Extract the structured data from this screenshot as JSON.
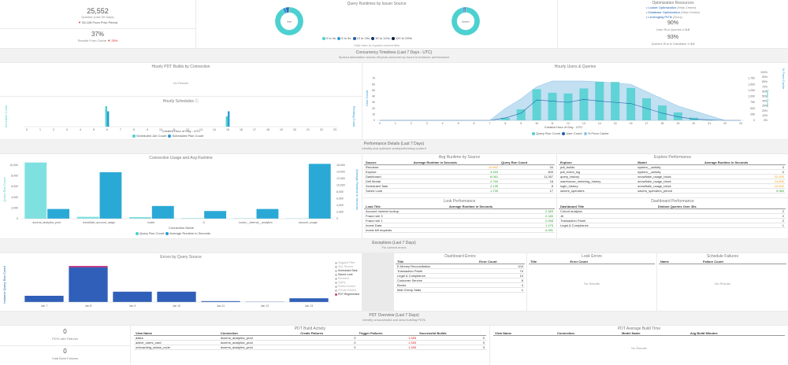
{
  "kpi": {
    "queries_value": "25,552",
    "queries_label": "Queries (Last 30 Days)",
    "prior_value": "53,108",
    "prior_label": "From Prior Period",
    "cache_value": "37%",
    "cache_label": "Results From Cache",
    "cache_delta": "25%"
  },
  "runtimes": {
    "title": "Query Runtimes by Issuer Source",
    "donut1_label": "User",
    "donut2_label": "System",
    "legend": [
      "0 to 4s",
      "5 to 9s",
      "10 to 29s",
      "30 to 119s",
      "120 to 299s"
    ],
    "hint": "Click here to expand current tiles"
  },
  "resources": {
    "title": "Optimization Resources",
    "items": [
      {
        "name": "Looker Optimization",
        "note": "(Help Center)"
      },
      {
        "name": "Database Optimization",
        "note": "(Help Center)"
      },
      {
        "name": "Leveraging PDTs",
        "note": "(Docs)"
      }
    ],
    "user_pct": "90%",
    "user_label": "User Run Queries",
    "user_threshold": "< 5.0",
    "db_pct": "93%",
    "db_label": "Queries Run in Database",
    "db_threshold": "< 4.0"
  },
  "concurrency": {
    "title": "Concurrency Timelines (Last 7 Days - UTC)",
    "subtitle": "Spread automation across off peak concurrency hours to enhance performance"
  },
  "pdt_builds": {
    "title": "Hourly PDT Builds by Connection",
    "no_results": "No Results"
  },
  "schedules": {
    "title": "Hourly Schedules",
    "xlabel": "Created Hour of Day - UTC",
    "left_axis": "Schedule Count",
    "right_axis": "Pending Count",
    "legend": [
      "Scheduled Job Count",
      "Scheduled Plan Count"
    ]
  },
  "hourly_users": {
    "title": "Hourly Users & Queries",
    "xlabel": "Created Hour of Day - UTC",
    "left_axis": "User Count",
    "right_axis": "Query Count",
    "right2_axis": "% From Cache",
    "legend": [
      "Query Run Count",
      "User Count",
      "% From Cache"
    ]
  },
  "perf": {
    "title": "Performance Details (Last 7 Days)",
    "subtitle": "Identify and optimize underperforming content"
  },
  "conn_usage": {
    "title": "Connection Usage and Avg Runtime",
    "xlabel": "Connection Name",
    "left_axis": "Query Run Count",
    "right_axis": "Average Runtime in Seconds",
    "legend": [
      "Query Run Count",
      "Average Runtime in Seconds"
    ]
  },
  "avg_source": {
    "title": "Avg Runtime by Source",
    "cols": [
      "Source",
      "Average Runtime in Seconds",
      "Query Run Count"
    ],
    "rows": [
      [
        "Renderer",
        "10.892",
        "34"
      ],
      [
        "Explore",
        "3.453",
        "409"
      ],
      [
        "Dashboard",
        "8.061",
        "11,267"
      ],
      [
        "Drill Modal",
        "2.769",
        "18"
      ],
      [
        "Scheduled Task",
        "2.135",
        "8"
      ],
      [
        "Saved Look",
        "1.705",
        "17"
      ]
    ]
  },
  "look_perf": {
    "title": "Look Performance",
    "cols": [
      "Look Title",
      "Average Runtime in Seconds"
    ],
    "rows": [
      [
        "Account number lookup",
        "2.369"
      ],
      [
        "Fraud rule 3",
        "2.180"
      ],
      [
        "Fraud rule 1",
        "2.058"
      ],
      [
        "Invest Data",
        "1.475"
      ],
      [
        "Invest bill requests",
        "0.091"
      ]
    ]
  },
  "explore_perf": {
    "title": "Explore Performance",
    "cols": [
      "Explore",
      "Model",
      "Average Runtime in Seconds"
    ],
    "rows": [
      [
        "pdt_builds",
        "system__activity",
        "0"
      ],
      [
        "pdt_event_log",
        "system__activity",
        "0"
      ],
      [
        "query_history",
        "snowflake_usage_block",
        "22,200"
      ],
      [
        "warehouse_metering_history",
        "snowflake_usage_block",
        "14,830"
      ],
      [
        "login_history",
        "snowflake_usage_block",
        "10,202"
      ],
      [
        "savers_spenders",
        "savers_spenders_period",
        "9,960"
      ]
    ]
  },
  "dash_perf": {
    "title": "Dashboard Performance",
    "cols": [
      "Dashboard Title",
      "Distinct Queries Over 30s"
    ],
    "rows": [
      [
        "Cohort analysis",
        "2"
      ],
      [
        "Jb",
        "2"
      ],
      [
        "Transaction Panel",
        "2"
      ],
      [
        "Legal & Compliance",
        "1"
      ]
    ]
  },
  "exceptions": {
    "title": "Exceptions (Last 7 Days)",
    "subtitle": "Fix content errors"
  },
  "errors": {
    "title": "Errors by Query Source",
    "left_axis": "Instance Query Run Count",
    "legend": [
      "Suggest Filter",
      "SQL Runner",
      "Scheduled Task",
      "Saved Look",
      "Renderer",
      "Query",
      "Public Embed",
      "Private Embed",
      "PDT Regenerator"
    ]
  },
  "dash_errors": {
    "title": "Dashboard Errors",
    "cols": [
      "Title",
      "Error Count"
    ],
    "rows": [
      [
        "E-Money Reconciliation",
        "104"
      ],
      [
        "Transaction Panel",
        "74"
      ],
      [
        "Legal & Compliance",
        "10"
      ],
      [
        "Customer Service",
        "6"
      ],
      [
        "Bonds",
        "4"
      ],
      [
        "Mail Chimp Stats",
        "1"
      ]
    ]
  },
  "look_errors": {
    "title": "Look Errors",
    "cols": [
      "Title",
      "Error Count"
    ],
    "no_results": "No Results"
  },
  "sched_failures": {
    "title": "Schedule Failures",
    "cols": [
      "Name",
      "Failure Count"
    ],
    "no_results": "No Results"
  },
  "pdt_overview": {
    "title": "PDT Overview (Last 7 Days)",
    "subtitle": "Identify unsuccessful and slow building PDTs"
  },
  "pdt_kpi": {
    "fail_value": "0",
    "fail_label": "PDTs with Failures",
    "total_value": "0",
    "total_label": "Total Build Failures"
  },
  "pdt_activity": {
    "title": "PDT Build Activity",
    "cols": [
      "View Name",
      "Connection",
      "Create Failures",
      "Trigger Failures",
      "Successful Builds"
    ],
    "rows": [
      [
        "dates",
        "dozens_analytics_prod",
        "0",
        "1,555",
        "0"
      ],
      [
        "active_users_card",
        "dozens_analytics_prod",
        "0",
        "1,555",
        "0"
      ],
      [
        "onboarding_status_code",
        "dozens_analytics_prod",
        "0",
        "1,555",
        "0"
      ]
    ]
  },
  "pdt_build_time": {
    "title": "PDT Average Build Time",
    "cols": [
      "View Name",
      "Connection",
      "Model Name",
      "Avg Build Minutes"
    ],
    "no_results": "No Results"
  },
  "chart_data": [
    {
      "type": "bar",
      "title": "Hourly Schedules",
      "xlabel": "Created Hour of Day - UTC",
      "categories": [
        "0",
        "1",
        "2",
        "3",
        "4",
        "5",
        "6",
        "7",
        "8",
        "9",
        "10",
        "11",
        "12",
        "13",
        "14",
        "15",
        "16",
        "17",
        "18",
        "19",
        "20",
        "21",
        "22",
        "23"
      ],
      "series": [
        {
          "name": "Scheduled Job Count",
          "values": [
            0,
            0,
            0,
            0,
            0,
            0,
            4,
            0,
            0,
            0,
            0,
            0,
            0,
            0,
            0,
            2,
            0,
            0,
            0,
            0,
            0,
            0,
            0,
            0
          ]
        },
        {
          "name": "Scheduled Plan Count",
          "values": [
            0,
            0,
            0,
            0,
            0,
            0,
            3,
            0,
            0,
            0,
            0,
            0,
            0,
            0,
            0,
            3,
            0,
            0,
            0,
            0,
            0,
            0,
            0,
            0
          ]
        }
      ],
      "ylim": [
        0,
        4
      ]
    },
    {
      "type": "bar",
      "title": "Hourly Users & Queries",
      "xlabel": "Created Hour of Day - UTC",
      "categories": [
        "0",
        "1",
        "2",
        "3",
        "4",
        "5",
        "6",
        "7",
        "8",
        "9",
        "10",
        "11",
        "12",
        "13",
        "14",
        "15",
        "16",
        "17",
        "18",
        "19",
        "20",
        "21",
        "22",
        "23"
      ],
      "ylim": [
        0,
        80
      ],
      "y2lim": [
        0,
        2000
      ],
      "y2ticks": [
        0,
        250,
        500,
        750,
        1000,
        1250,
        1500,
        1750
      ],
      "y3ticks": [
        "0%",
        "10%",
        "20%",
        "30%",
        "40%",
        "50%",
        "60%",
        "70%",
        "80%",
        "90%",
        "100%"
      ],
      "series": [
        {
          "name": "Query Run Count",
          "values": [
            0,
            0,
            0,
            0,
            0,
            0,
            0,
            0,
            100,
            460,
            1300,
            1150,
            1120,
            1330,
            1610,
            1600,
            1350,
            920,
            620,
            330,
            110,
            25,
            0,
            0
          ]
        },
        {
          "name": "User Count",
          "values": [
            0,
            0,
            0,
            0,
            0,
            0,
            0,
            0,
            4,
            12,
            34,
            32,
            30,
            35,
            32,
            30,
            28,
            20,
            12,
            6,
            2,
            1,
            0,
            0
          ]
        },
        {
          "name": "% From Cache",
          "values": [
            0,
            0,
            0,
            0,
            0,
            0,
            0,
            0,
            25,
            45,
            70,
            82,
            82,
            82,
            80,
            78,
            75,
            60,
            45,
            30,
            20,
            10,
            0,
            0
          ]
        }
      ]
    },
    {
      "type": "bar",
      "title": "Connection Usage and Avg Runtime",
      "xlabel": "Connection Name",
      "categories": [
        "dozens_analytics_prod",
        "snowflake_account_usage",
        "looker",
        "-0",
        "looker__internal__analytics",
        "account_usage"
      ],
      "ylim": [
        0,
        10000
      ],
      "y2lim": [
        0,
        16000
      ],
      "yticks": [
        0,
        2000,
        4000,
        6000,
        8000,
        10000
      ],
      "y2ticks": [
        0,
        2000,
        4000,
        6000,
        8000,
        10000,
        12000,
        14000,
        16000
      ],
      "series": [
        {
          "name": "Query Run Count",
          "values": [
            10500,
            350,
            300,
            100,
            80,
            60
          ]
        },
        {
          "name": "Average Runtime in Seconds",
          "values": [
            2900,
            13900,
            3800,
            2300,
            2900,
            16400
          ]
        }
      ]
    },
    {
      "type": "bar",
      "title": "Errors by Query Source",
      "categories": [
        "Jan 7",
        "Jan 8",
        "Jan 9",
        "Jan 10",
        "Jan 11",
        "Jan 12",
        "Jan 13"
      ],
      "ylim": [
        0,
        130
      ],
      "series": [
        {
          "name": "Query",
          "values": [
            20,
            110,
            33,
            33,
            3,
            1,
            12
          ]
        },
        {
          "name": "PDT Regenerator",
          "values": [
            0,
            5,
            0,
            0,
            0,
            0,
            0
          ]
        }
      ]
    },
    {
      "type": "pie",
      "title": "Query Runtimes by Issuer Source",
      "categories": [
        "0 to 4s",
        "5 to 9s",
        "10 to 29s",
        "30 to 119s",
        "120 to 299s"
      ],
      "series": [
        {
          "name": "User",
          "values": [
            92,
            4,
            3,
            1,
            0
          ]
        },
        {
          "name": "System",
          "values": [
            96,
            2,
            1,
            1,
            0
          ]
        }
      ]
    }
  ]
}
